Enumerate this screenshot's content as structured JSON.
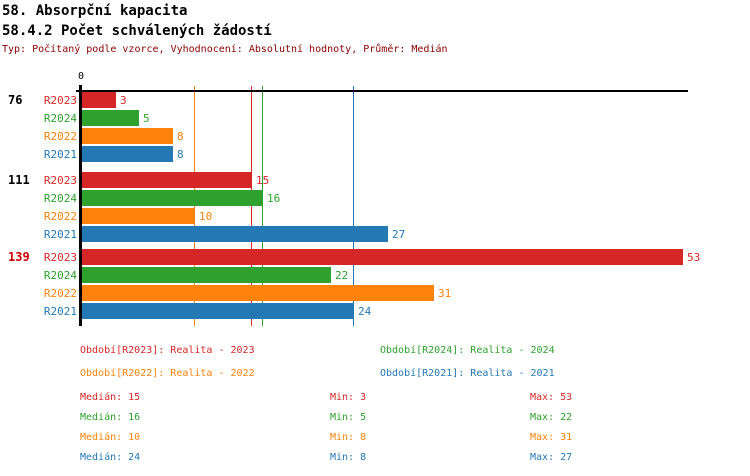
{
  "header": {
    "title1": "58. Absorpční kapacita",
    "title2": "58.4.2 Počet schválených žádostí",
    "subtitle": "Typ: Počítaný podle vzorce, Vyhodnocení: Absolutní hodnoty, Průměr: Medián"
  },
  "chart_data": {
    "type": "bar",
    "orientation": "horizontal",
    "axis": {
      "zero_label": "0",
      "xlim": [
        0,
        53.5
      ],
      "grid": false
    },
    "series_colors": {
      "R2023": "#d62728",
      "R2024": "#2ea12e",
      "R2022": "#ff820d",
      "R2021": "#2478b4"
    },
    "groups": [
      {
        "label": "76",
        "label_color": "#000000",
        "bars": [
          {
            "series": "R2023",
            "value": 3
          },
          {
            "series": "R2024",
            "value": 5
          },
          {
            "series": "R2022",
            "value": 8
          },
          {
            "series": "R2021",
            "value": 8
          }
        ]
      },
      {
        "label": "111",
        "label_color": "#000000",
        "bars": [
          {
            "series": "R2023",
            "value": 15
          },
          {
            "series": "R2024",
            "value": 16
          },
          {
            "series": "R2022",
            "value": 10
          },
          {
            "series": "R2021",
            "value": 27
          }
        ]
      },
      {
        "label": "139",
        "label_color": "#cc0000",
        "bars": [
          {
            "series": "R2023",
            "value": 53
          },
          {
            "series": "R2024",
            "value": 22
          },
          {
            "series": "R2022",
            "value": 31
          },
          {
            "series": "R2021",
            "value": 24
          }
        ]
      }
    ],
    "median_lines": [
      {
        "series": "R2023",
        "value": 15
      },
      {
        "series": "R2024",
        "value": 16
      },
      {
        "series": "R2022",
        "value": 10
      },
      {
        "series": "R2021",
        "value": 24
      }
    ]
  },
  "legend": {
    "entries": [
      {
        "series": "R2023",
        "label": "Období[R2023]: Realita - 2023"
      },
      {
        "series": "R2024",
        "label": "Období[R2024]: Realita - 2024"
      },
      {
        "series": "R2022",
        "label": "Období[R2022]: Realita - 2022"
      },
      {
        "series": "R2021",
        "label": "Období[R2021]: Realita - 2021"
      }
    ]
  },
  "stats": {
    "labels": {
      "median": "Medián",
      "min": "Min",
      "max": "Max"
    },
    "rows": [
      {
        "series": "R2023",
        "median": 15,
        "min": 3,
        "max": 53
      },
      {
        "series": "R2024",
        "median": 16,
        "min": 5,
        "max": 22
      },
      {
        "series": "R2022",
        "median": 10,
        "min": 8,
        "max": 31
      },
      {
        "series": "R2021",
        "median": 24,
        "min": 8,
        "max": 27
      }
    ]
  }
}
